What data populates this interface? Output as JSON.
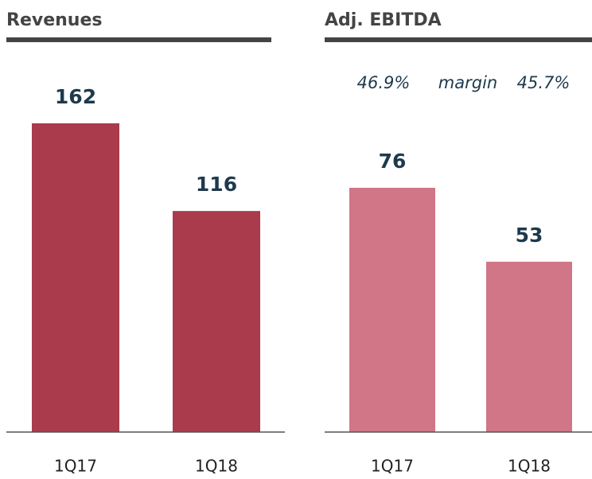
{
  "chart_data": [
    {
      "type": "bar",
      "title": "Revenues",
      "categories": [
        "1Q17",
        "1Q18"
      ],
      "values": [
        162,
        116
      ],
      "color": "#a93b4d"
    },
    {
      "type": "bar",
      "title": "Adj. EBITDA",
      "categories": [
        "1Q17",
        "1Q18"
      ],
      "values": [
        76,
        53
      ],
      "color": "#d07686",
      "annotations": [
        "46.9%",
        "margin",
        "45.7%"
      ]
    }
  ]
}
